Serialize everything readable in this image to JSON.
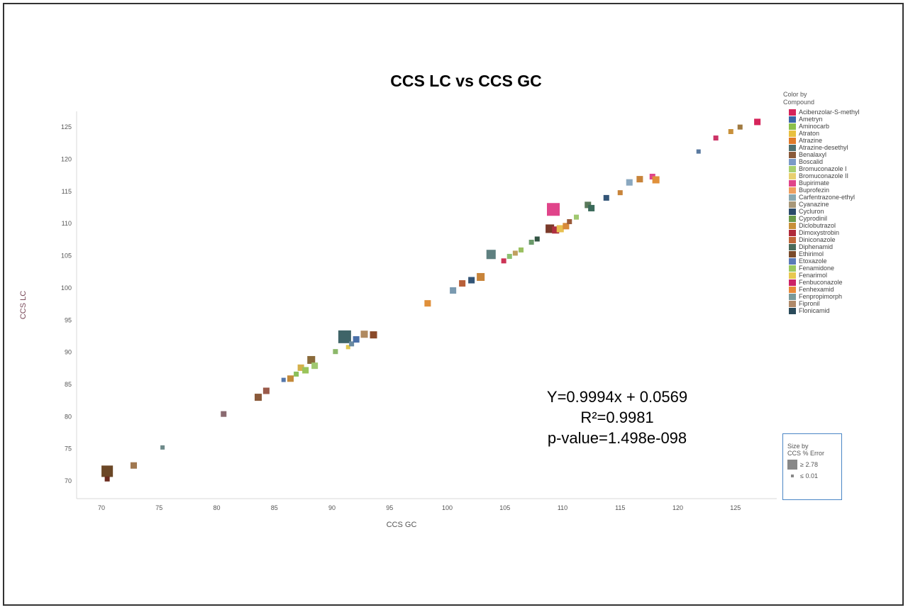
{
  "chart_data": {
    "type": "scatter",
    "title": "CCS LC vs CCS GC",
    "xlabel": "CCS GC",
    "ylabel": "CCS LC",
    "xlim": [
      68,
      128
    ],
    "ylim": [
      67,
      128
    ],
    "xticks": [
      "70",
      "75",
      "80",
      "85",
      "90",
      "95",
      "100",
      "105",
      "110",
      "115",
      "120",
      "125"
    ],
    "yticks": [
      "70",
      "75",
      "80",
      "85",
      "90",
      "95",
      "100",
      "105",
      "110",
      "115",
      "120",
      "125"
    ],
    "grid": false,
    "points": [
      {
        "x": 70.5,
        "y": 71.5,
        "size": 2.4,
        "color": "#6b4726"
      },
      {
        "x": 70.5,
        "y": 70.3,
        "size": 0.6,
        "color": "#6b2b1e"
      },
      {
        "x": 72.8,
        "y": 72.4,
        "size": 1.0,
        "color": "#a07850"
      },
      {
        "x": 75.3,
        "y": 75.2,
        "size": 0.4,
        "color": "#6e8a8a"
      },
      {
        "x": 80.6,
        "y": 80.4,
        "size": 0.8,
        "color": "#8a6a70"
      },
      {
        "x": 83.6,
        "y": 83.0,
        "size": 1.2,
        "color": "#8a5a3a"
      },
      {
        "x": 84.3,
        "y": 84.0,
        "size": 1.0,
        "color": "#9a5a4a"
      },
      {
        "x": 85.8,
        "y": 85.7,
        "size": 0.4,
        "color": "#5577aa"
      },
      {
        "x": 86.4,
        "y": 85.9,
        "size": 1.0,
        "color": "#c48a3a"
      },
      {
        "x": 86.9,
        "y": 86.6,
        "size": 0.6,
        "color": "#8cbf5a"
      },
      {
        "x": 87.3,
        "y": 87.6,
        "size": 1.0,
        "color": "#d4b04a"
      },
      {
        "x": 87.7,
        "y": 87.2,
        "size": 1.0,
        "color": "#9ac45a"
      },
      {
        "x": 88.2,
        "y": 88.8,
        "size": 1.4,
        "color": "#8a6a3a"
      },
      {
        "x": 88.5,
        "y": 87.9,
        "size": 1.0,
        "color": "#a0c870"
      },
      {
        "x": 90.3,
        "y": 90.1,
        "size": 0.6,
        "color": "#8cb86a"
      },
      {
        "x": 91.1,
        "y": 92.4,
        "size": 2.78,
        "color": "#3f6468"
      },
      {
        "x": 91.4,
        "y": 90.8,
        "size": 0.4,
        "color": "#e0c850"
      },
      {
        "x": 91.7,
        "y": 91.3,
        "size": 0.6,
        "color": "#6a8aa0"
      },
      {
        "x": 92.1,
        "y": 92.0,
        "size": 1.0,
        "color": "#4a70a8"
      },
      {
        "x": 92.8,
        "y": 92.8,
        "size": 1.2,
        "color": "#b08a60"
      },
      {
        "x": 93.6,
        "y": 92.7,
        "size": 1.2,
        "color": "#8a4a2a"
      },
      {
        "x": 98.3,
        "y": 97.6,
        "size": 1.0,
        "color": "#e0903a"
      },
      {
        "x": 100.5,
        "y": 99.6,
        "size": 1.0,
        "color": "#7a9ab0"
      },
      {
        "x": 101.3,
        "y": 100.7,
        "size": 1.0,
        "color": "#b8603a"
      },
      {
        "x": 102.1,
        "y": 101.2,
        "size": 1.0,
        "color": "#335577"
      },
      {
        "x": 102.9,
        "y": 101.7,
        "size": 1.4,
        "color": "#c8843a"
      },
      {
        "x": 103.8,
        "y": 105.2,
        "size": 1.8,
        "color": "#5e8080"
      },
      {
        "x": 104.9,
        "y": 104.2,
        "size": 0.6,
        "color": "#cc3355"
      },
      {
        "x": 105.4,
        "y": 104.9,
        "size": 0.6,
        "color": "#8cc070"
      },
      {
        "x": 105.9,
        "y": 105.4,
        "size": 0.6,
        "color": "#c0a060"
      },
      {
        "x": 106.4,
        "y": 105.9,
        "size": 0.6,
        "color": "#9ac060"
      },
      {
        "x": 107.3,
        "y": 107.1,
        "size": 0.6,
        "color": "#6a9a6a"
      },
      {
        "x": 107.8,
        "y": 107.6,
        "size": 0.6,
        "color": "#335544"
      },
      {
        "x": 109.2,
        "y": 112.2,
        "size": 2.78,
        "color": "#e0448a"
      },
      {
        "x": 108.9,
        "y": 109.2,
        "size": 1.6,
        "color": "#7a3a2a"
      },
      {
        "x": 109.4,
        "y": 109.0,
        "size": 1.2,
        "color": "#b03040"
      },
      {
        "x": 109.8,
        "y": 109.2,
        "size": 1.2,
        "color": "#e8c050"
      },
      {
        "x": 110.3,
        "y": 109.6,
        "size": 1.0,
        "color": "#d88a3a"
      },
      {
        "x": 110.6,
        "y": 110.3,
        "size": 0.6,
        "color": "#9a5a3a"
      },
      {
        "x": 111.2,
        "y": 111.0,
        "size": 0.6,
        "color": "#a0c870"
      },
      {
        "x": 112.2,
        "y": 112.9,
        "size": 1.0,
        "color": "#5a7a5a"
      },
      {
        "x": 112.5,
        "y": 112.4,
        "size": 1.0,
        "color": "#3a6a5a"
      },
      {
        "x": 113.8,
        "y": 114.0,
        "size": 0.8,
        "color": "#335577"
      },
      {
        "x": 115.0,
        "y": 114.8,
        "size": 0.6,
        "color": "#c8843a"
      },
      {
        "x": 115.8,
        "y": 116.4,
        "size": 1.0,
        "color": "#8aa8c0"
      },
      {
        "x": 116.7,
        "y": 116.9,
        "size": 1.0,
        "color": "#c8843a"
      },
      {
        "x": 117.8,
        "y": 117.3,
        "size": 0.8,
        "color": "#e0448a"
      },
      {
        "x": 118.1,
        "y": 116.8,
        "size": 1.2,
        "color": "#e0903a"
      },
      {
        "x": 121.8,
        "y": 121.2,
        "size": 0.4,
        "color": "#5a7aa0"
      },
      {
        "x": 123.3,
        "y": 123.3,
        "size": 0.6,
        "color": "#cc3366"
      },
      {
        "x": 124.6,
        "y": 124.3,
        "size": 0.6,
        "color": "#c8903a"
      },
      {
        "x": 125.4,
        "y": 125.0,
        "size": 0.6,
        "color": "#a07a40"
      },
      {
        "x": 126.9,
        "y": 125.8,
        "size": 1.0,
        "color": "#d6245a"
      }
    ],
    "annotations": [
      "Y=0.9994x + 0.0569",
      "R²=0.9981",
      "p-value=1.498e-098"
    ]
  },
  "legend": {
    "title_line1": "Color by",
    "title_line2": "Compound",
    "items": [
      {
        "label": "Acibenzolar-S-methyl",
        "color": "#d6245a"
      },
      {
        "label": "Ametryn",
        "color": "#3a66a8"
      },
      {
        "label": "Aminocarb",
        "color": "#8cc04a"
      },
      {
        "label": "Atraton",
        "color": "#e8c040"
      },
      {
        "label": "Atrazine",
        "color": "#e07a2a"
      },
      {
        "label": "Atrazine-desethyl",
        "color": "#4f6f6f"
      },
      {
        "label": "Benalaxyl",
        "color": "#8a5a3a"
      },
      {
        "label": "Boscalid",
        "color": "#7a9ac8"
      },
      {
        "label": "Bromuconazole I",
        "color": "#a8d070"
      },
      {
        "label": "Bromuconazole II",
        "color": "#e8d070"
      },
      {
        "label": "Bupirimate",
        "color": "#e0448a"
      },
      {
        "label": "Buprofezin",
        "color": "#eea060"
      },
      {
        "label": "Carfentrazone-ethyl",
        "color": "#8aa8b0"
      },
      {
        "label": "Cyanazine",
        "color": "#a8987a"
      },
      {
        "label": "Cycluron",
        "color": "#2a4a6a"
      },
      {
        "label": "Cyprodinil",
        "color": "#6a9a4a"
      },
      {
        "label": "Diclobutrazol",
        "color": "#c8903a"
      },
      {
        "label": "Dimoxystrobin",
        "color": "#b02a3a"
      },
      {
        "label": "Diniconazole",
        "color": "#c0683a"
      },
      {
        "label": "Diphenamid",
        "color": "#4a6a5a"
      },
      {
        "label": "Ethirimol",
        "color": "#7a4a2a"
      },
      {
        "label": "Etoxazole",
        "color": "#5a7ab8"
      },
      {
        "label": "Fenamidone",
        "color": "#9ac860"
      },
      {
        "label": "Fenarimol",
        "color": "#e8c850"
      },
      {
        "label": "Fenbuconazole",
        "color": "#cc2266"
      },
      {
        "label": "Fenhexamid",
        "color": "#e88a3a"
      },
      {
        "label": "Fenpropimorph",
        "color": "#7a9a9a"
      },
      {
        "label": "Fipronil",
        "color": "#b08a6a"
      },
      {
        "label": "Flonicamid",
        "color": "#2a4a5a"
      }
    ]
  },
  "size_legend": {
    "title_line1": "Size by",
    "title_line2": "CCS % Error",
    "max_label": "≥ 2.78",
    "min_label": "≤ 0.01"
  }
}
